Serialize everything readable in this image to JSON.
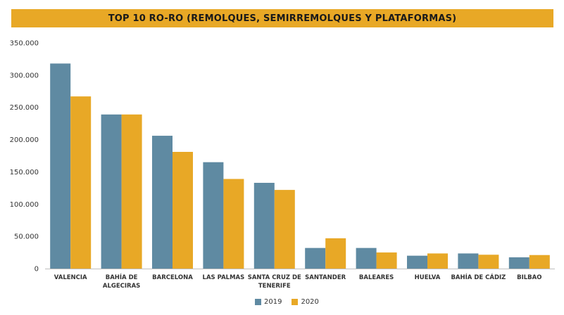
{
  "chart_data": {
    "type": "bar",
    "title": "TOP 10 RO-RO (REMOLQUES, SEMIRREMOLQUES Y PLATAFORMAS)",
    "categories": [
      [
        "VALENCIA"
      ],
      [
        "BAHÍA DE",
        "ALGECIRAS"
      ],
      [
        "BARCELONA"
      ],
      [
        "LAS PALMAS"
      ],
      [
        "SANTA CRUZ DE",
        "TENERIFE"
      ],
      [
        "SANTANDER"
      ],
      [
        "BALEARES"
      ],
      [
        "HUELVA"
      ],
      [
        "BAHÍA DE CÁDIZ"
      ],
      [
        "BILBAO"
      ]
    ],
    "series": [
      {
        "name": "2019",
        "color": "#5F8AA2",
        "values": [
          318000,
          239000,
          206000,
          165000,
          133000,
          32000,
          32000,
          20000,
          23500,
          17500
        ]
      },
      {
        "name": "2020",
        "color": "#E8A826",
        "values": [
          267000,
          239000,
          181000,
          139000,
          122000,
          47000,
          25000,
          23500,
          21500,
          21000
        ]
      }
    ],
    "yticks": [
      "0",
      "50.000",
      "100.000",
      "150.000",
      "200.000",
      "250.000",
      "300.000",
      "350.000"
    ],
    "ylim": [
      0,
      350000
    ],
    "grid": false,
    "legend_position": "bottom"
  }
}
